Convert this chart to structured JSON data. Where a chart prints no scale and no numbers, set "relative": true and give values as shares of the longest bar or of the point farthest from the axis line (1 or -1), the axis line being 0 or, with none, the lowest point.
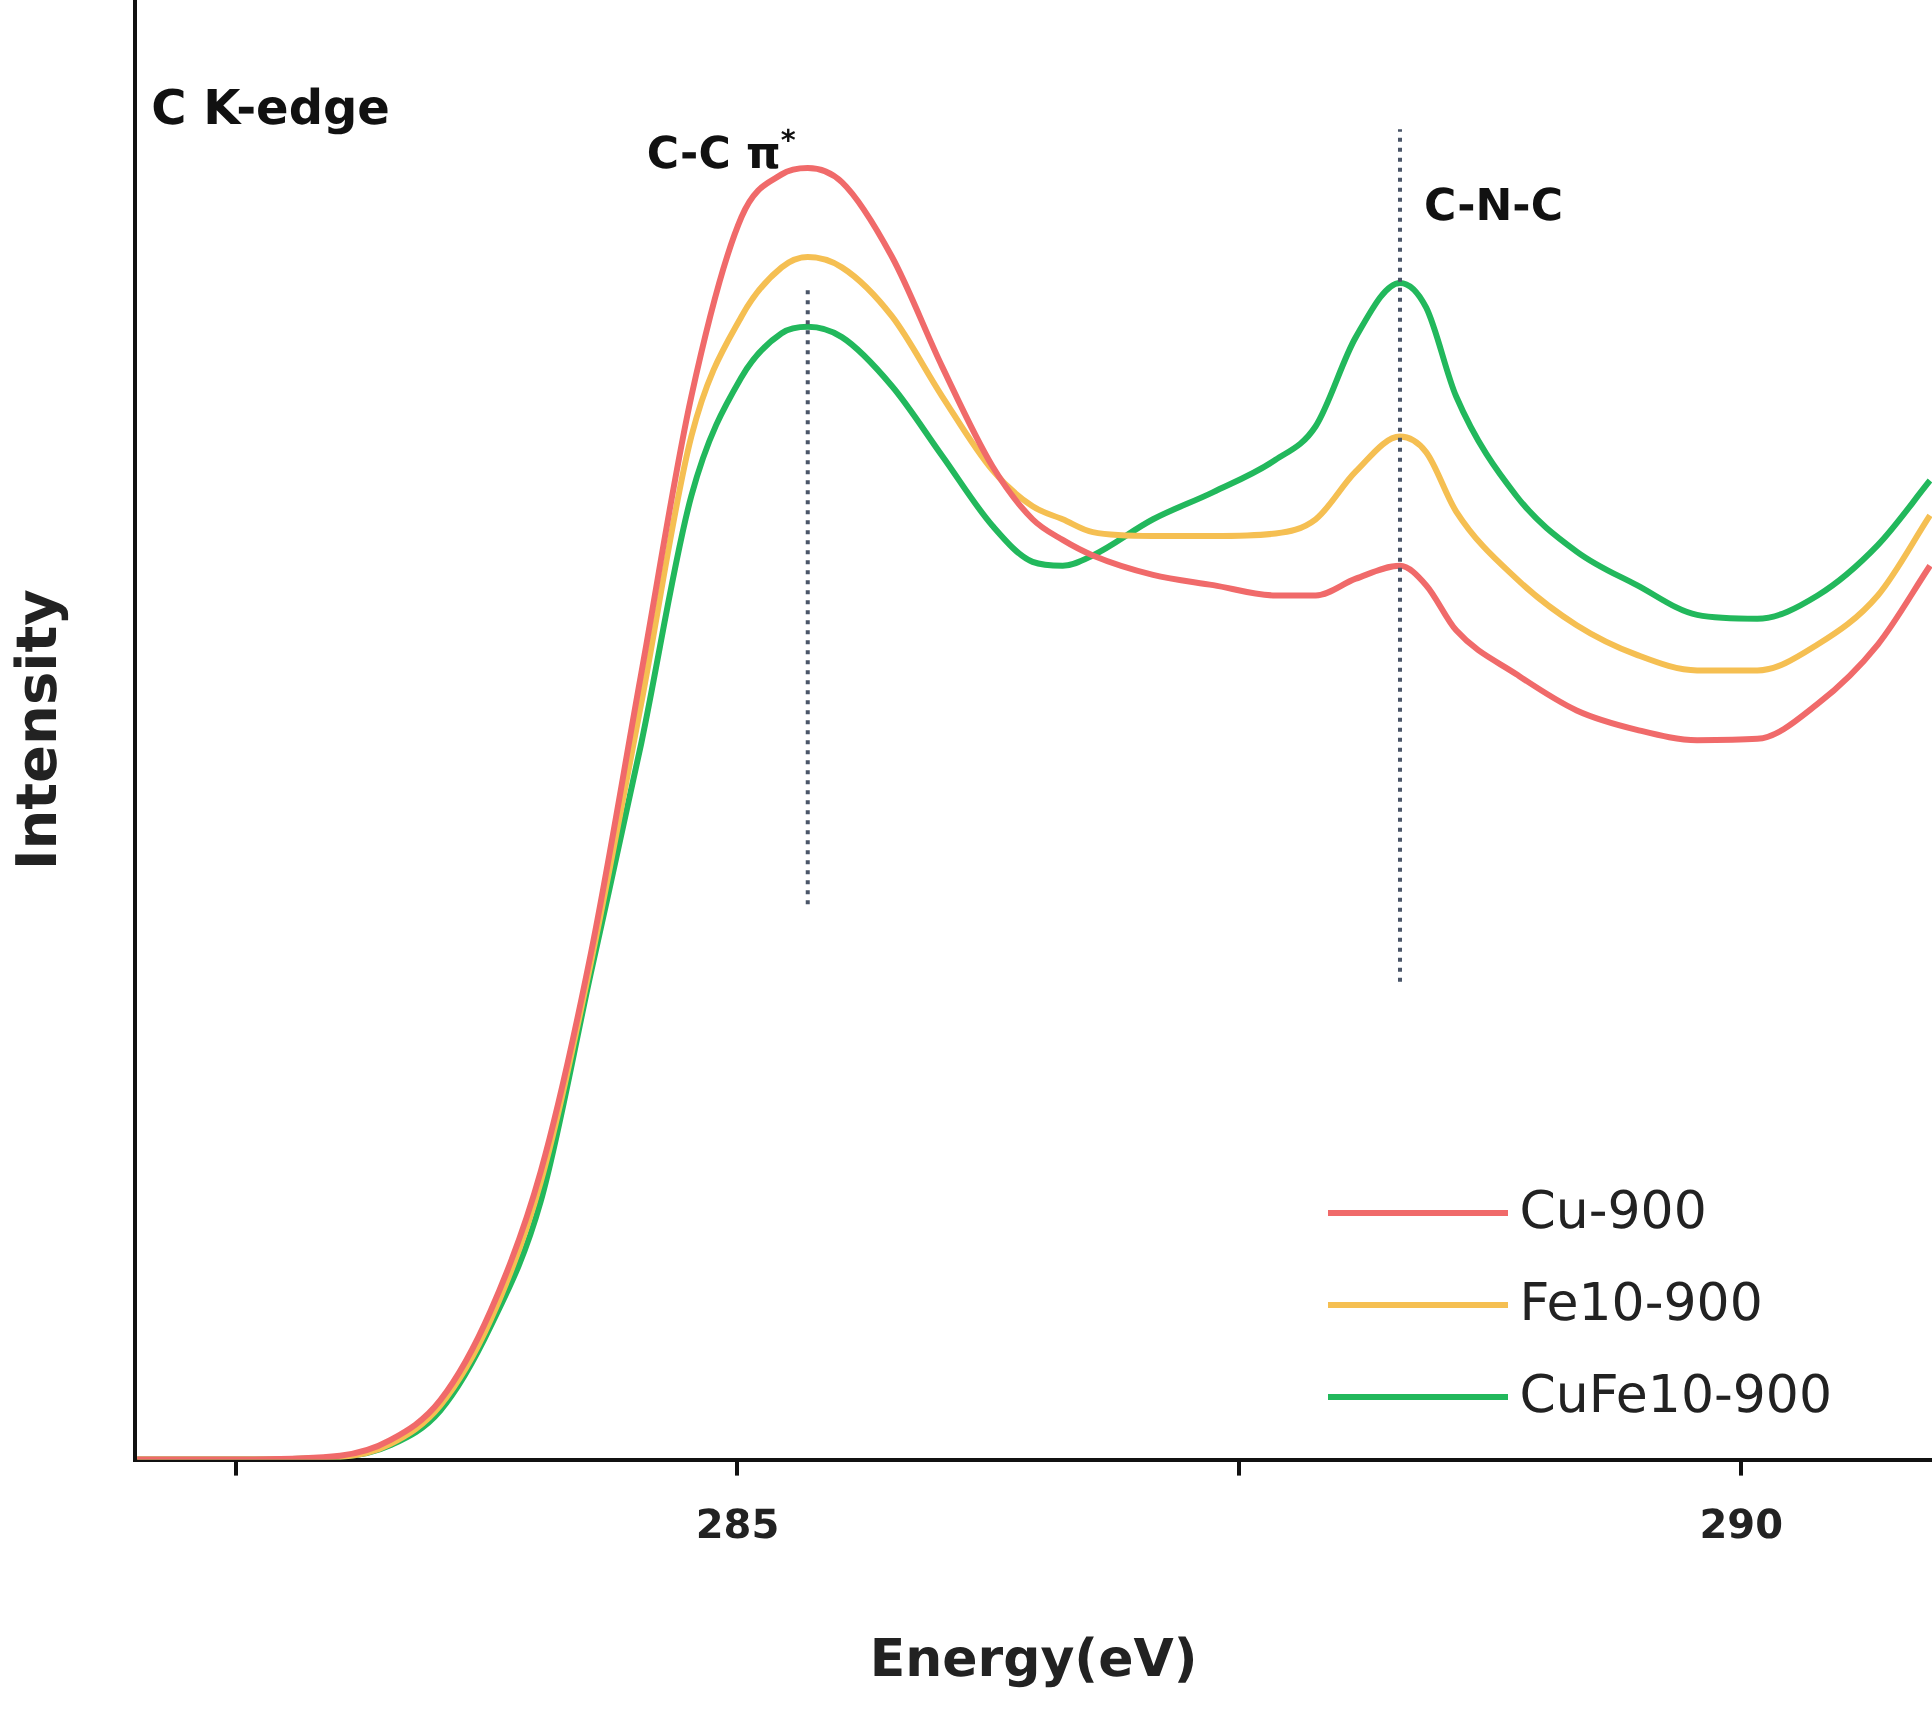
{
  "chart_data": {
    "type": "line",
    "xlabel": "Energy(eV)",
    "ylabel": "Intensity",
    "relative": true,
    "annotations": [
      "C K-edge"
    ],
    "x": [
      282.01,
      282.5,
      283.02,
      283.27,
      283.52,
      283.77,
      284.02,
      284.27,
      284.52,
      284.77,
      285.02,
      285.22,
      285.35,
      285.52,
      285.77,
      286.02,
      286.27,
      286.47,
      286.62,
      286.77,
      287.07,
      287.37,
      287.68,
      287.88,
      288.08,
      288.3,
      288.43,
      288.58,
      288.88,
      289.18,
      289.48,
      289.78,
      290.08,
      290.38,
      290.68,
      290.94
    ],
    "xlim": [
      282,
      290.95
    ],
    "xticks": [
      {
        "value": 282.5,
        "label": null
      },
      285,
      {
        "value": 287.5,
        "label": null
      },
      290
    ],
    "series": [
      {
        "name": "Cu-900",
        "color": "#f06a6a",
        "values": [
          0,
          0,
          0.003,
          0.015,
          0.046,
          0.115,
          0.223,
          0.392,
          0.608,
          0.823,
          0.962,
          0.995,
          1,
          0.989,
          0.931,
          0.846,
          0.769,
          0.728,
          0.712,
          0.7,
          0.685,
          0.677,
          0.669,
          0.669,
          0.682,
          0.692,
          0.677,
          0.642,
          0.608,
          0.58,
          0.565,
          0.557,
          0.558,
          0.585,
          0.631,
          0.692
        ]
      },
      {
        "name": "Fe10-900",
        "color": "#f5bf52",
        "values": [
          0,
          0,
          0.002,
          0.012,
          0.042,
          0.108,
          0.215,
          0.385,
          0.585,
          0.792,
          0.885,
          0.923,
          0.931,
          0.923,
          0.885,
          0.823,
          0.766,
          0.738,
          0.728,
          0.718,
          0.715,
          0.715,
          0.717,
          0.728,
          0.765,
          0.792,
          0.78,
          0.734,
          0.682,
          0.646,
          0.623,
          0.611,
          0.611,
          0.631,
          0.669,
          0.731
        ]
      },
      {
        "name": "CuFe10-900",
        "color": "#22b85c",
        "values": [
          0,
          0,
          0.002,
          0.011,
          0.038,
          0.103,
          0.2,
          0.377,
          0.554,
          0.746,
          0.838,
          0.872,
          0.877,
          0.869,
          0.831,
          0.777,
          0.723,
          0.695,
          0.692,
          0.7,
          0.728,
          0.749,
          0.774,
          0.8,
          0.869,
          0.911,
          0.892,
          0.823,
          0.746,
          0.703,
          0.677,
          0.654,
          0.651,
          0.669,
          0.708,
          0.758
        ]
      }
    ],
    "ref_lines": [
      {
        "axis": "x",
        "value": 285.35,
        "label": "C-C π$^{*}$",
        "line_style": "dotted",
        "color": "#4a5568"
      },
      {
        "axis": "x",
        "value": 288.3,
        "label": "C-N-C",
        "line_style": "dotted",
        "color": "#4a5568"
      }
    ],
    "legend": "bottom right",
    "marker": "none",
    "line_style": "solid",
    "grid": false
  }
}
